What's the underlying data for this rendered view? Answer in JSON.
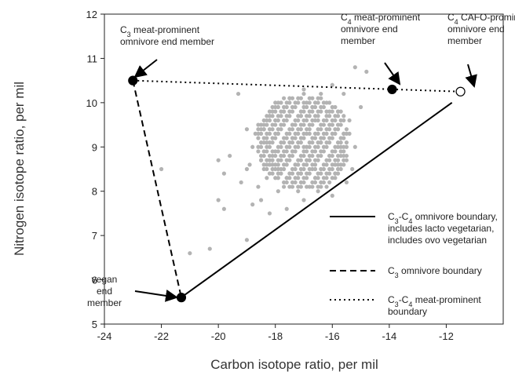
{
  "chart_data": {
    "type": "scatter",
    "xlabel": "Carbon isotope ratio, per mil",
    "ylabel": "Nitrogen isotope ratio, per mil",
    "xlim": [
      -24,
      -10
    ],
    "ylim": [
      5,
      12
    ],
    "xticks": [
      -24,
      -22,
      -20,
      -18,
      -16,
      -14,
      -12
    ],
    "yticks": [
      5,
      6,
      7,
      8,
      9,
      10,
      11,
      12
    ],
    "grid": false,
    "legend_position": "right",
    "colors": {
      "points": "#b3b3b3",
      "lines": "#000000",
      "cafo_fill": "#ffffff"
    },
    "end_members": [
      {
        "id": "c3",
        "x": -23.0,
        "y": 10.5,
        "filled": true,
        "label_lines": [
          [
            "C",
            "3",
            " meat-prominent"
          ],
          [
            "omnivore end member"
          ]
        ]
      },
      {
        "id": "c4",
        "x": -13.9,
        "y": 10.3,
        "filled": true,
        "label_lines": [
          [
            "C",
            "4",
            " meat-prominent"
          ],
          [
            "omnivore end"
          ],
          [
            "member"
          ]
        ]
      },
      {
        "id": "cafo",
        "x": -11.5,
        "y": 10.25,
        "filled": false,
        "label_lines": [
          [
            "C",
            "4",
            " CAFO-prominent"
          ],
          [
            "omnivore end"
          ],
          [
            "member"
          ]
        ]
      },
      {
        "id": "vegan",
        "x": -21.3,
        "y": 5.6,
        "filled": true,
        "label_lines": [
          [
            "vegan"
          ],
          [
            "end"
          ],
          [
            "member"
          ]
        ]
      }
    ],
    "series": [
      {
        "style": "solid",
        "legend_lines": [
          [
            "C",
            "3",
            "-C",
            "4",
            " omnivore boundary,"
          ],
          [
            "includes lacto vegetarian,"
          ],
          [
            "includes ovo vegetarian"
          ]
        ],
        "x": [
          -21.2,
          -11.8
        ],
        "y": [
          5.65,
          10.0
        ]
      },
      {
        "style": "dashed",
        "legend_lines": [
          [
            "C",
            "3",
            " omnivore boundary"
          ]
        ],
        "x": [
          -23.0,
          -21.3
        ],
        "y": [
          10.5,
          5.6
        ]
      },
      {
        "style": "dotted",
        "legend_lines": [
          [
            "C",
            "3",
            "-C",
            "4",
            " meat-prominent"
          ],
          [
            "boundary"
          ]
        ],
        "x": [
          -23.0,
          -11.5
        ],
        "y": [
          10.5,
          10.25
        ]
      }
    ],
    "scatter_points": [
      [
        -22.0,
        8.5
      ],
      [
        -21.0,
        6.6
      ],
      [
        -20.3,
        6.7
      ],
      [
        -19.0,
        6.9
      ],
      [
        -20.0,
        7.8
      ],
      [
        -19.8,
        7.6
      ],
      [
        -19.8,
        8.4
      ],
      [
        -20.0,
        8.7
      ],
      [
        -19.6,
        8.8
      ],
      [
        -19.2,
        8.2
      ],
      [
        -19.0,
        8.5
      ],
      [
        -18.8,
        7.7
      ],
      [
        -19.3,
        10.2
      ],
      [
        -19.0,
        9.4
      ],
      [
        -18.5,
        7.8
      ],
      [
        -18.2,
        7.5
      ],
      [
        -17.6,
        7.6
      ],
      [
        -17.0,
        7.8
      ],
      [
        -16.5,
        8.0
      ],
      [
        -16.0,
        7.9
      ],
      [
        -15.5,
        8.2
      ],
      [
        -15.3,
        8.5
      ],
      [
        -15.2,
        9.0
      ],
      [
        -15.4,
        9.6
      ],
      [
        -15.0,
        9.9
      ],
      [
        -15.2,
        10.8
      ],
      [
        -14.8,
        10.7
      ],
      [
        -15.6,
        10.2
      ],
      [
        -16.0,
        10.4
      ],
      [
        -16.4,
        10.2
      ],
      [
        -17.0,
        10.3
      ],
      [
        -17.5,
        10.1
      ],
      [
        -18.0,
        10.0
      ],
      [
        -18.2,
        9.7
      ],
      [
        -18.6,
        9.5
      ],
      [
        -18.8,
        9.0
      ],
      [
        -18.3,
        8.3
      ],
      [
        -17.2,
        8.0
      ],
      [
        -16.2,
        8.1
      ],
      [
        -15.8,
        8.6
      ],
      [
        -15.6,
        9.3
      ],
      [
        -15.8,
        9.8
      ],
      [
        -16.7,
        9.9
      ],
      [
        -17.7,
        9.8
      ],
      [
        -18.3,
        9.1
      ],
      [
        -18.1,
        8.6
      ],
      [
        -17.6,
        8.3
      ],
      [
        -16.6,
        8.3
      ],
      [
        -16.1,
        8.8
      ],
      [
        -16.0,
        9.5
      ],
      [
        -16.5,
        9.6
      ],
      [
        -17.4,
        9.5
      ],
      [
        -17.9,
        9.3
      ],
      [
        -17.8,
        8.8
      ],
      [
        -17.3,
        8.6
      ],
      [
        -16.8,
        8.7
      ],
      [
        -16.4,
        9.1
      ],
      [
        -16.8,
        9.3
      ],
      [
        -17.4,
        9.2
      ],
      [
        -17.4,
        8.9
      ],
      [
        -17.0,
        9.0
      ],
      [
        -16.6,
        8.5
      ],
      [
        -17.1,
        8.4
      ],
      [
        -17.9,
        8.5
      ],
      [
        -18.5,
        8.7
      ],
      [
        -18.4,
        9.4
      ],
      [
        -17.1,
        9.7
      ],
      [
        -16.2,
        9.8
      ],
      [
        -15.7,
        9.0
      ],
      [
        -15.9,
        8.4
      ],
      [
        -16.9,
        8.1
      ],
      [
        -17.9,
        8.0
      ],
      [
        -18.6,
        8.1
      ],
      [
        -18.9,
        8.6
      ],
      [
        -18.7,
        9.3
      ],
      [
        -18.0,
        9.6
      ],
      [
        -17.0,
        10.0
      ],
      [
        -16.1,
        10.0
      ],
      [
        -15.4,
        9.3
      ],
      [
        -15.6,
        8.8
      ]
    ]
  }
}
